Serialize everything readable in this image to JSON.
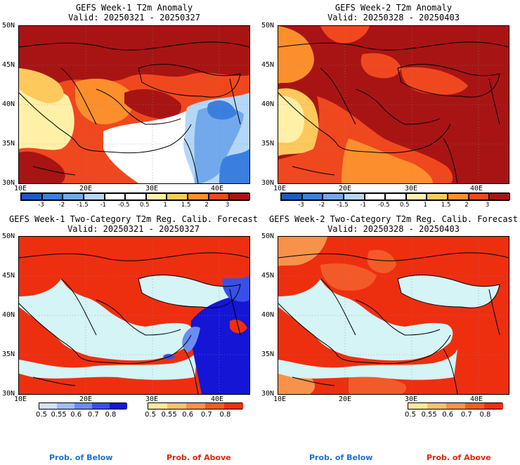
{
  "colors": {
    "land_neutral": "#ffffff",
    "sea": "#d4f4f6",
    "anomaly_scale": [
      "#1a59c6",
      "#3a7fe0",
      "#72a9ec",
      "#b5d7f7",
      "#ffffff",
      "#ffffff",
      "#fff0a8",
      "#fec95c",
      "#fc8f2c",
      "#f0481e",
      "#a81414"
    ],
    "prob_below": [
      "#d4e1fa",
      "#a3bcf7",
      "#6b8df2",
      "#3850ea",
      "#1515d6"
    ],
    "prob_above": [
      "#fee79e",
      "#fcc16d",
      "#f8924a",
      "#f35a29",
      "#ed2f10"
    ],
    "prob_below_text": "#1e6ed6",
    "prob_above_text": "#e0250f"
  },
  "panels": [
    {
      "id": "week1-anomaly",
      "title_line1": "GEFS Week-1 T2m Anomaly",
      "title_line2": "Valid: 20250321 - 20250327",
      "lat_labels": [
        "50N",
        "45N",
        "40N",
        "35N",
        "30N"
      ],
      "lon_labels": [
        "10E",
        "20E",
        "30E",
        "40E"
      ]
    },
    {
      "id": "week2-anomaly",
      "title_line1": "GEFS Week-2 T2m Anomaly",
      "title_line2": "Valid: 20250328 - 20250403",
      "lat_labels": [
        "50N",
        "45N",
        "40N",
        "35N",
        "30N"
      ],
      "lon_labels": [
        "10E",
        "20E",
        "30E",
        "40E"
      ]
    },
    {
      "id": "week1-prob",
      "title_line1": "GEFS Week-1 Two-Category T2m Reg. Calib. Forecast",
      "title_line2": "Valid: 20250321 - 20250327",
      "lat_labels": [
        "50N",
        "45N",
        "40N",
        "35N",
        "30N"
      ],
      "lon_labels": [
        "10E",
        "20E",
        "30E",
        "40E"
      ]
    },
    {
      "id": "week2-prob",
      "title_line1": "GEFS Week-2 Two-Category T2m Reg. Calib. Forecast",
      "title_line2": "Valid: 20250328 - 20250403",
      "lat_labels": [
        "50N",
        "45N",
        "40N",
        "35N",
        "30N"
      ],
      "lon_labels": [
        "10E",
        "20E",
        "30E",
        "40E"
      ]
    }
  ],
  "anomaly_colorbar": {
    "labels": [
      "-3",
      "-2",
      "-1.5",
      "-1",
      "-0.5",
      "0.5",
      "1",
      "1.5",
      "2",
      "3"
    ]
  },
  "prob_colorbar": {
    "labels": [
      "0.5",
      "0.55",
      "0.6",
      "0.7",
      "0.8"
    ]
  },
  "legend": {
    "below": "Prob. of Below",
    "above": "Prob. of Above"
  }
}
